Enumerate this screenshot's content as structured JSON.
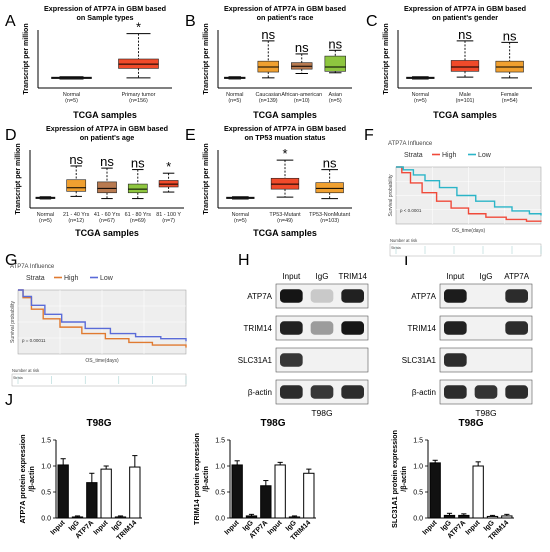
{
  "panels": {
    "A": {
      "letter": "A",
      "title": [
        "Expression of ATP7A in GBM based",
        "on Sample types"
      ],
      "ylabel": "Transcript per million",
      "xlabel": "TCGA samples",
      "groups": [
        {
          "name": "Normal",
          "n": "(n=5)",
          "color": "#3a3a3a",
          "box": [
            1.3,
            1.5
          ],
          "median": 1.4,
          "whisker": [
            1.25,
            1.55
          ],
          "sig": ""
        },
        {
          "name": "Primary tumor",
          "n": "(n=156)",
          "color": "#f04a2a",
          "box": [
            2.7,
            4.0
          ],
          "median": 3.3,
          "whisker": [
            1.4,
            7.5
          ],
          "sig": "*"
        }
      ]
    },
    "B": {
      "letter": "B",
      "title": [
        "Expression of ATP7A in GBM based",
        "on patient's race"
      ],
      "ylabel": "Transcript per million",
      "xlabel": "TCGA samples",
      "groups": [
        {
          "name": "Normal",
          "n": "(n=5)",
          "color": "#3a3a3a",
          "box": [
            1.3,
            1.5
          ],
          "median": 1.4,
          "whisker": [
            1.25,
            1.55
          ],
          "sig": ""
        },
        {
          "name": "Caucasian",
          "n": "(n=139)",
          "color": "#f0a030",
          "box": [
            2.2,
            3.7
          ],
          "median": 2.9,
          "whisker": [
            1.4,
            6.5
          ],
          "sig": "ns"
        },
        {
          "name": "African-american",
          "n": "(n=10)",
          "color": "#b87a50",
          "box": [
            2.6,
            3.5
          ],
          "median": 3.0,
          "whisker": [
            2.0,
            4.7
          ],
          "sig": "ns"
        },
        {
          "name": "Asian",
          "n": "(n=5)",
          "color": "#8ec63f",
          "box": [
            2.3,
            4.4
          ],
          "median": 2.9,
          "whisker": [
            2.1,
            5.2
          ],
          "sig": "ns"
        }
      ]
    },
    "C": {
      "letter": "C",
      "title": [
        "Expression of ATP7A in GBM based",
        "on patient's gender"
      ],
      "ylabel": "Transcript per million",
      "xlabel": "TCGA samples",
      "groups": [
        {
          "name": "Normal",
          "n": "(n=5)",
          "color": "#3a3a3a",
          "box": [
            1.3,
            1.5
          ],
          "median": 1.4,
          "whisker": [
            1.25,
            1.55
          ],
          "sig": ""
        },
        {
          "name": "Male",
          "n": "(n=101)",
          "color": "#f04a2a",
          "box": [
            2.3,
            3.8
          ],
          "median": 2.9,
          "whisker": [
            1.5,
            6.5
          ],
          "sig": "ns"
        },
        {
          "name": "Female",
          "n": "(n=54)",
          "color": "#f0a030",
          "box": [
            2.2,
            3.7
          ],
          "median": 2.9,
          "whisker": [
            1.4,
            6.3
          ],
          "sig": "ns"
        }
      ]
    },
    "D": {
      "letter": "D",
      "title": [
        "Expression of ATP7A in GBM based",
        "on patient's age"
      ],
      "ylabel": "Transcript per million",
      "xlabel": "TCGA samples",
      "groups": [
        {
          "name": "Normal",
          "n": "(n=5)",
          "color": "#3a3a3a",
          "box": [
            1.3,
            1.5
          ],
          "median": 1.4,
          "whisker": [
            1.25,
            1.55
          ],
          "sig": ""
        },
        {
          "name": "21 - 40 Yrs",
          "n": "(n=12)",
          "color": "#f0a030",
          "box": [
            2.3,
            3.9
          ],
          "median": 2.8,
          "whisker": [
            1.6,
            5.8
          ],
          "sig": "ns"
        },
        {
          "name": "41 - 60 Yrs",
          "n": "(n=67)",
          "color": "#b87a50",
          "box": [
            2.1,
            3.6
          ],
          "median": 2.7,
          "whisker": [
            1.3,
            5.5
          ],
          "sig": "ns"
        },
        {
          "name": "61 - 80 Yrs",
          "n": "(n=69)",
          "color": "#8ec63f",
          "box": [
            2.1,
            3.3
          ],
          "median": 2.6,
          "whisker": [
            1.3,
            5.3
          ],
          "sig": "ns"
        },
        {
          "name": "81 - 100 Y",
          "n": "(n=7)",
          "color": "#f04a2a",
          "box": [
            2.9,
            3.8
          ],
          "median": 3.3,
          "whisker": [
            2.2,
            4.8
          ],
          "sig": "*"
        }
      ]
    },
    "E": {
      "letter": "E",
      "title": [
        "Expression of ATP7A in GBM based",
        "on TP53 muation status"
      ],
      "ylabel": "Transcript per million",
      "xlabel": "TCGA samples",
      "groups": [
        {
          "name": "Normal",
          "n": "(n=5)",
          "color": "#3a3a3a",
          "box": [
            1.3,
            1.5
          ],
          "median": 1.4,
          "whisker": [
            1.25,
            1.55
          ],
          "sig": ""
        },
        {
          "name": "TP53-Mutant",
          "n": "(n=49)",
          "color": "#f04a2a",
          "box": [
            2.6,
            4.1
          ],
          "median": 3.3,
          "whisker": [
            1.5,
            6.6
          ],
          "sig": "*"
        },
        {
          "name": "TP53-NonMutant",
          "n": "(n=103)",
          "color": "#f0a030",
          "box": [
            2.1,
            3.5
          ],
          "median": 2.7,
          "whisker": [
            1.3,
            5.3
          ],
          "sig": "ns"
        }
      ]
    },
    "F": {
      "letter": "F",
      "title": "ATP7A Influence",
      "strata_label": "Strata",
      "legend": [
        {
          "name": "High",
          "color": "#f04a3a"
        },
        {
          "name": "Low",
          "color": "#2bb5c8"
        }
      ],
      "ylabel": "Survival probability",
      "xlabel": "OS_time(days)",
      "pvalue": "p < 0.0001",
      "risk_title": "Number at risk",
      "risk_rows": [
        "Strata"
      ]
    },
    "G": {
      "letter": "G",
      "title": "ATP7A Influence",
      "strata_label": "Strata",
      "legend": [
        {
          "name": "High",
          "color": "#e07a30"
        },
        {
          "name": "Low",
          "color": "#5a6bd8"
        }
      ],
      "ylabel": "Survival probability",
      "xlabel": "OS_time(days)",
      "pvalue": "p = 0.00011",
      "risk_title": "Number at risk",
      "risk_rows": [
        "Strata"
      ]
    },
    "H": {
      "letter": "H",
      "columns": [
        "Input",
        "IgG",
        "TRIM14"
      ],
      "rows": [
        "ATP7A",
        "TRIM14",
        "SLC31A1",
        "β-actin"
      ],
      "caption": "T98G"
    },
    "I": {
      "letter": "I",
      "columns": [
        "Input",
        "IgG",
        "ATP7A"
      ],
      "rows": [
        "ATP7A",
        "TRIM14",
        "SLC31A1",
        "β-actin"
      ],
      "caption": "T98G"
    }
  },
  "chart_data": [
    {
      "type": "bar",
      "letter": "J",
      "title": "T98G",
      "ylabel": [
        "ATP7A protein expression",
        "/β-actin"
      ],
      "ylim": [
        0,
        1.5
      ],
      "yticks": [
        0.0,
        0.5,
        1.0,
        1.5
      ],
      "categories": [
        "Input",
        "IgG",
        "ATP7A",
        "Input",
        "IgG",
        "TRIM14"
      ],
      "fills": [
        "#111111",
        "#111111",
        "#111111",
        "#ffffff",
        "#ffffff",
        "#ffffff"
      ],
      "values": [
        1.02,
        0.02,
        0.68,
        0.94,
        0.02,
        0.98
      ],
      "errors": [
        0.12,
        0.02,
        0.18,
        0.06,
        0.02,
        0.22
      ]
    },
    {
      "type": "bar",
      "title": "T98G",
      "ylabel": [
        "TRIM14 protein expression",
        "/β-actin"
      ],
      "ylim": [
        0,
        1.5
      ],
      "yticks": [
        0.0,
        0.5,
        1.0,
        1.5
      ],
      "categories": [
        "Input",
        "IgG",
        "ATP7A",
        "Input",
        "IgG",
        "TRIM14"
      ],
      "fills": [
        "#111111",
        "#111111",
        "#111111",
        "#ffffff",
        "#ffffff",
        "#ffffff"
      ],
      "values": [
        1.02,
        0.04,
        0.62,
        1.02,
        0.02,
        0.86
      ],
      "errors": [
        0.08,
        0.03,
        0.1,
        0.05,
        0.02,
        0.08
      ]
    },
    {
      "type": "bar",
      "title": "T98G",
      "ylabel": [
        "SLC31A1 protein expression",
        "/β-actin"
      ],
      "ylim": [
        0,
        1.5
      ],
      "yticks": [
        0.0,
        0.5,
        1.0,
        1.5
      ],
      "categories": [
        "Input",
        "IgG",
        "ATP7A",
        "Input",
        "IgG",
        "TRIM14"
      ],
      "fills": [
        "#111111",
        "#111111",
        "#111111",
        "#ffffff",
        "#ffffff",
        "#ffffff"
      ],
      "values": [
        1.06,
        0.05,
        0.05,
        1.0,
        0.03,
        0.04
      ],
      "errors": [
        0.05,
        0.04,
        0.03,
        0.08,
        0.02,
        0.03
      ]
    }
  ]
}
